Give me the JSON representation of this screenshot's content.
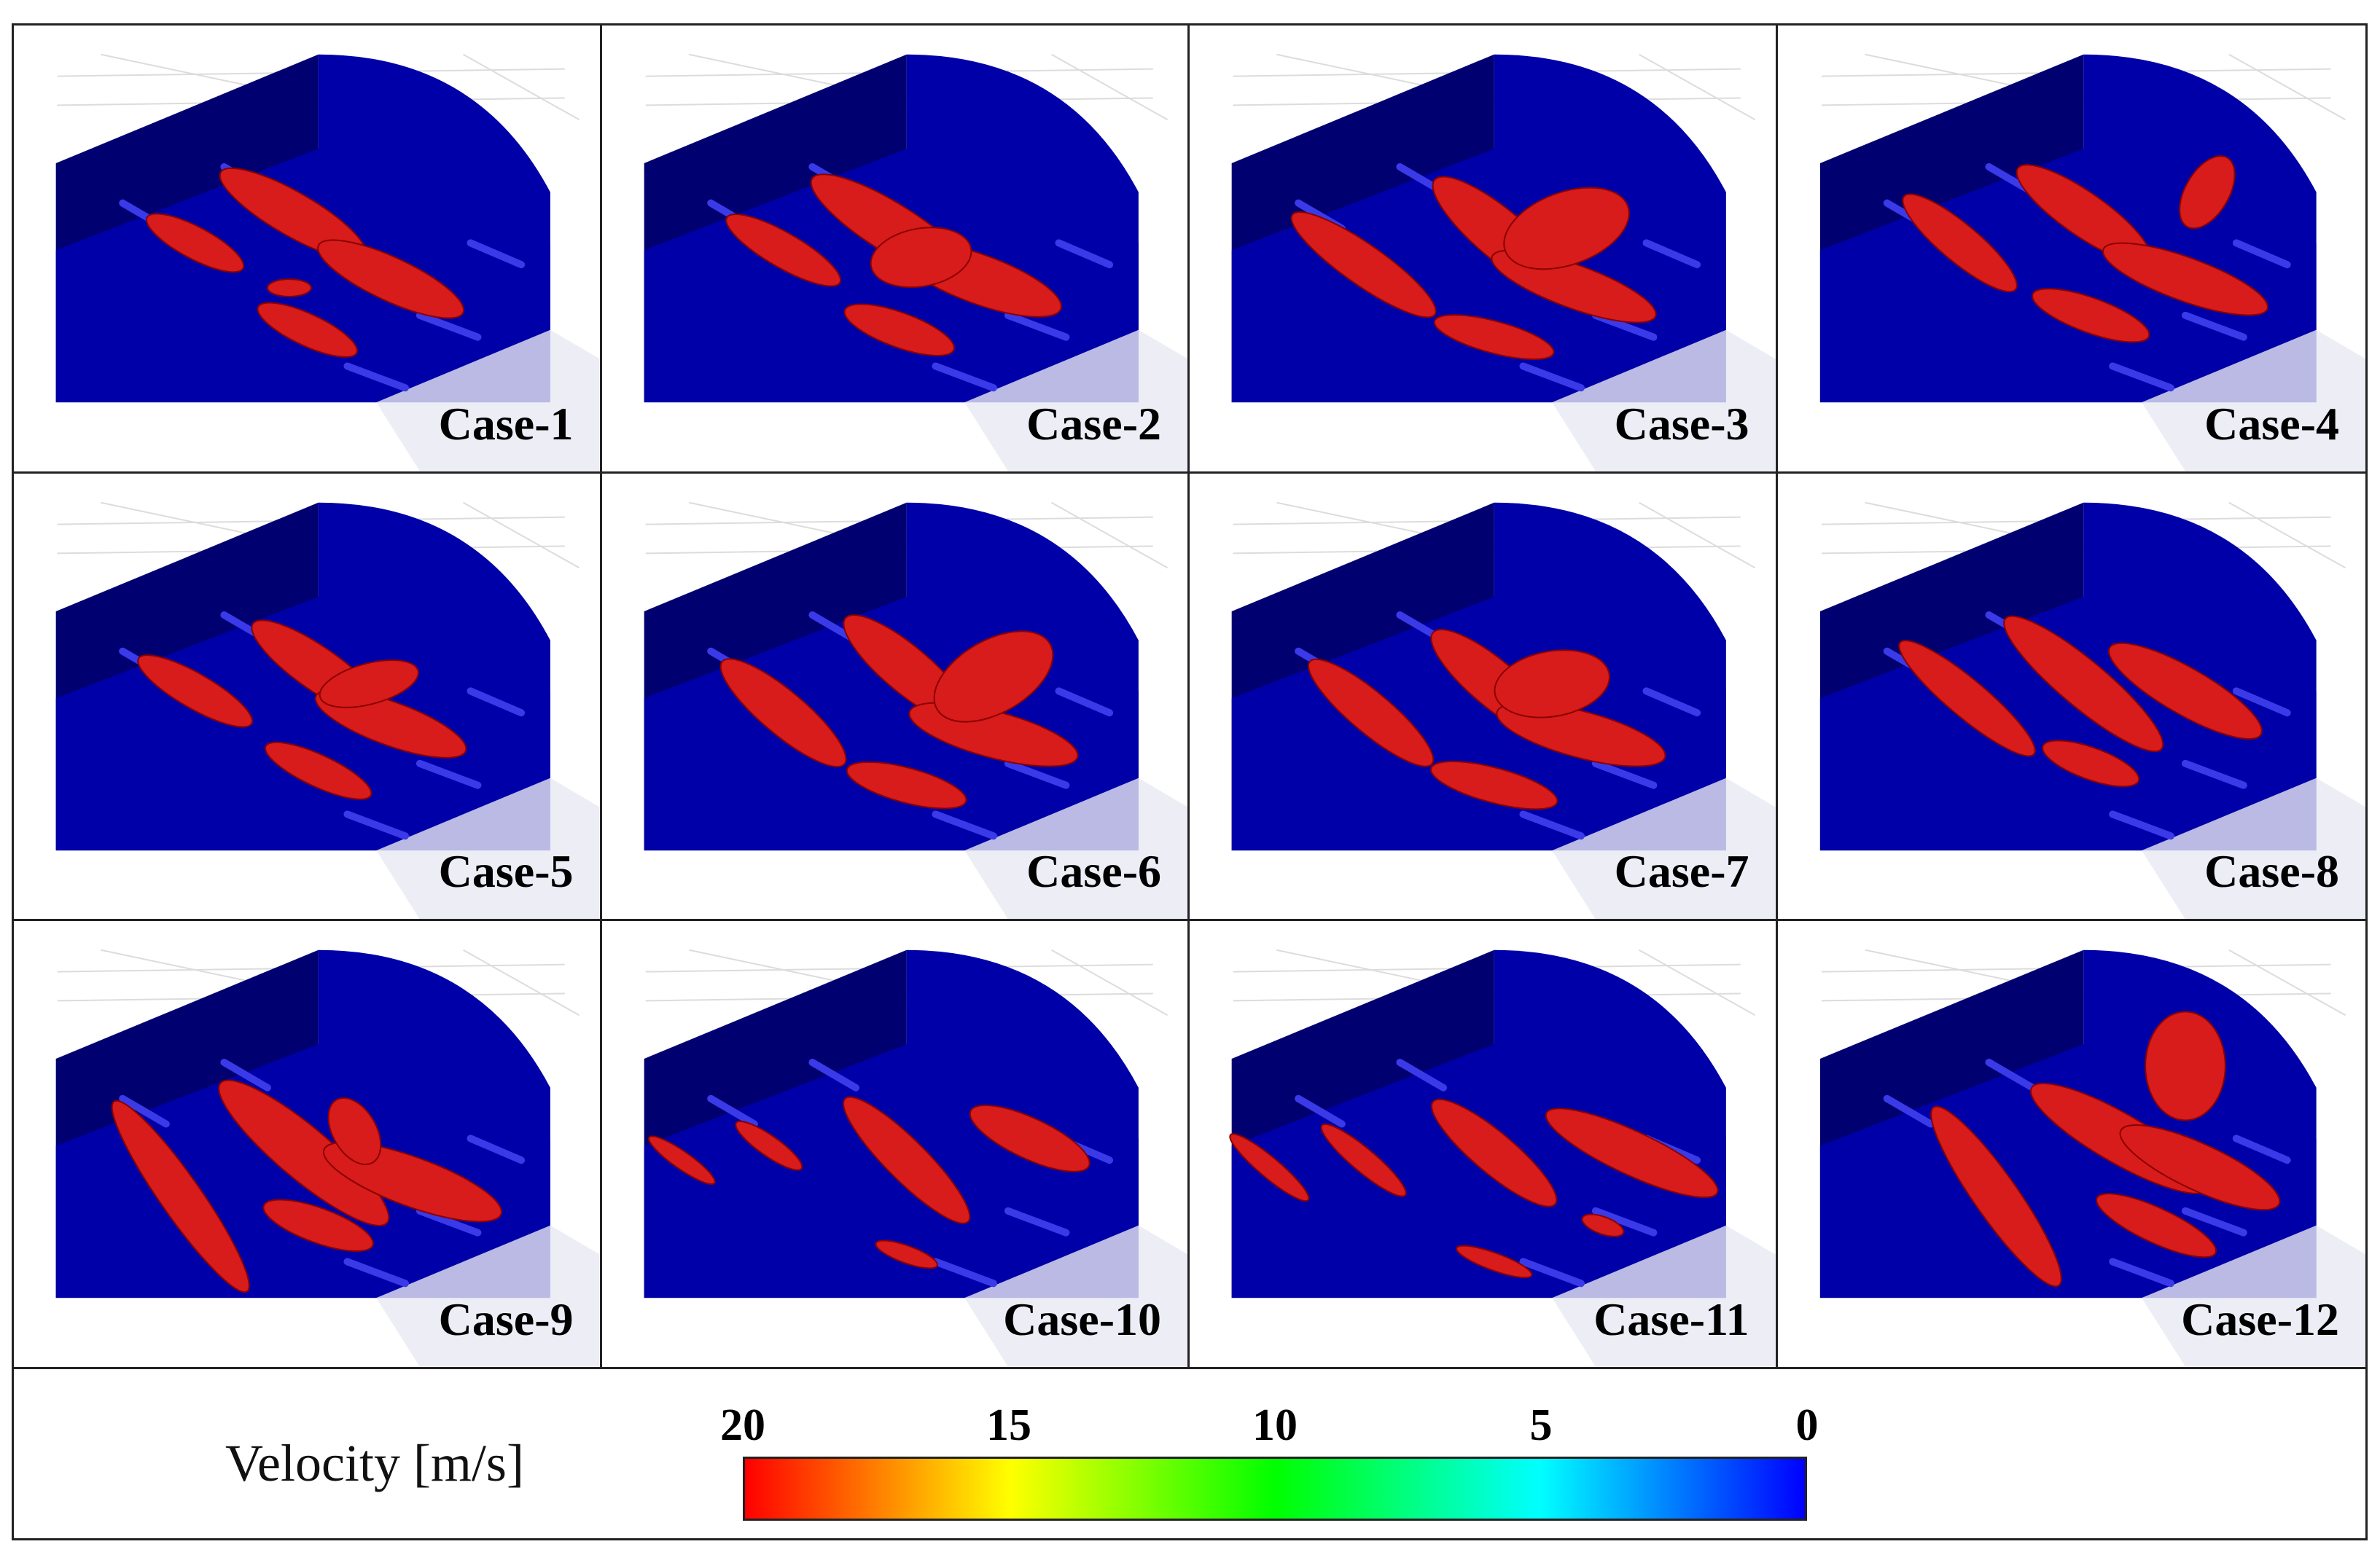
{
  "cases": [
    {
      "label": "Case-1"
    },
    {
      "label": "Case-2"
    },
    {
      "label": "Case-3"
    },
    {
      "label": "Case-4"
    },
    {
      "label": "Case-5"
    },
    {
      "label": "Case-6"
    },
    {
      "label": "Case-7"
    },
    {
      "label": "Case-8"
    },
    {
      "label": "Case-9"
    },
    {
      "label": "Case-10"
    },
    {
      "label": "Case-11"
    },
    {
      "label": "Case-12"
    }
  ],
  "legend": {
    "title": "Velocity [m/s]",
    "ticks": [
      "20",
      "15",
      "10",
      "5",
      "0"
    ],
    "tick_values": [
      20,
      15,
      10,
      5,
      0
    ],
    "min": 0,
    "max": 20,
    "colors": [
      "#ff0000",
      "#ffff00",
      "#00ff00",
      "#00ffff",
      "#0000ff"
    ]
  },
  "colors": {
    "wall": "#0000a8",
    "wall_dark": "#000070",
    "plume": "#d81b1b",
    "nozzle": "#3a3ae8"
  }
}
